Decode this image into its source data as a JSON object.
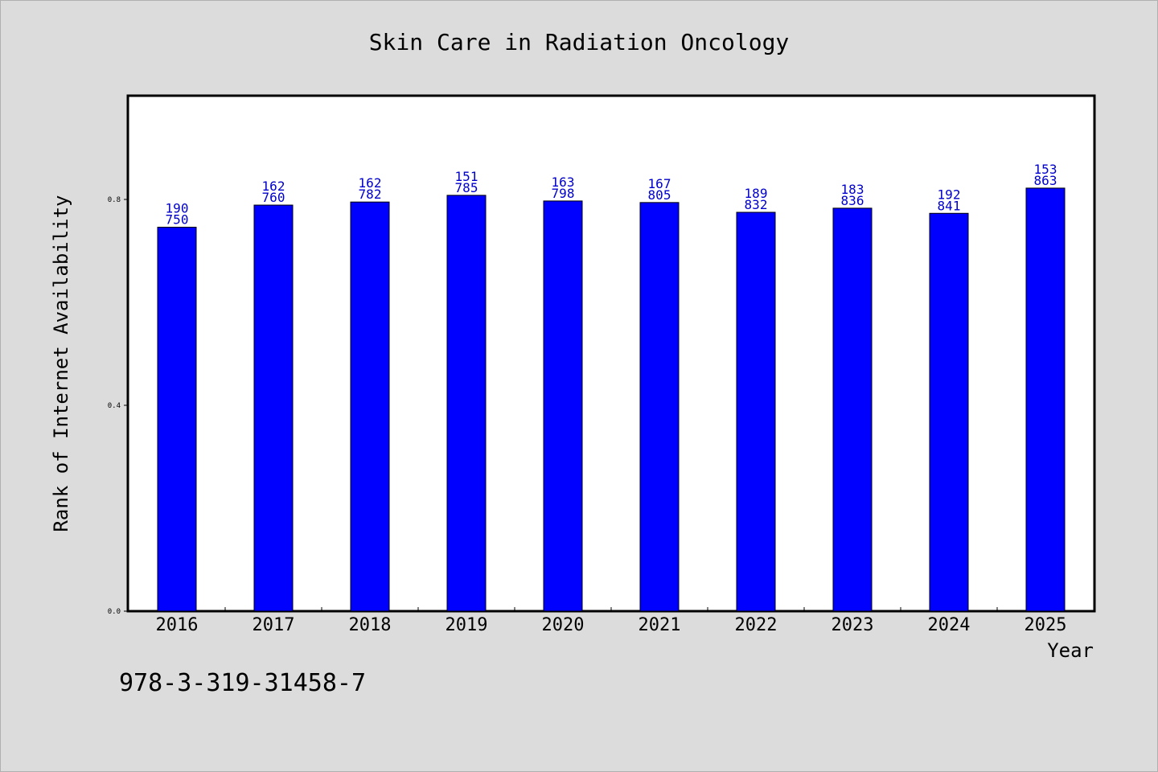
{
  "chart_data": {
    "type": "bar",
    "title": "Skin Care in Radiation Oncology",
    "xlabel": "Year",
    "ylabel": "Rank of Internet Availability",
    "categories": [
      "2016",
      "2017",
      "2018",
      "2019",
      "2020",
      "2021",
      "2022",
      "2023",
      "2024",
      "2025"
    ],
    "values": [
      0.746,
      0.789,
      0.795,
      0.808,
      0.797,
      0.794,
      0.775,
      0.783,
      0.773,
      0.822
    ],
    "label_top": [
      "190",
      "162",
      "162",
      "151",
      "163",
      "167",
      "189",
      "183",
      "192",
      "153"
    ],
    "label_bottom": [
      "750",
      "760",
      "782",
      "785",
      "798",
      "805",
      "832",
      "836",
      "841",
      "863"
    ],
    "yticks": [
      "0.0",
      "0.4",
      "0.8"
    ],
    "ylim": [
      0,
      1.0
    ],
    "bar_color": "#0000ff",
    "label_color": "#0000cc",
    "grid": false
  },
  "footer": {
    "isbn": "978-3-319-31458-7"
  }
}
